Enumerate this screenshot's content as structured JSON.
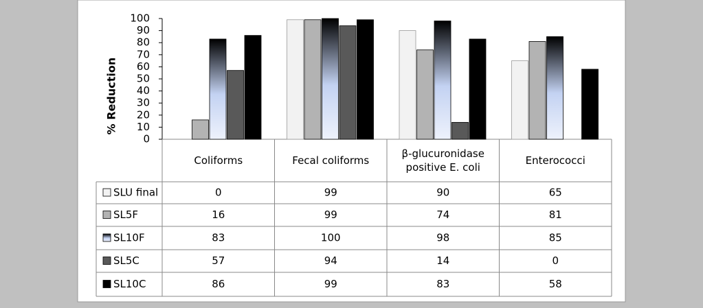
{
  "chart_data": {
    "type": "bar",
    "y_label": "% Reduction",
    "categories": [
      "Coliforms",
      "Fecal coliforms",
      "β-glucuronidase positive E. coli",
      "Enterococci"
    ],
    "ylim": [
      0,
      100
    ],
    "yticks": [
      0,
      10,
      20,
      30,
      40,
      50,
      60,
      70,
      80,
      90,
      100
    ],
    "series": [
      {
        "name": "SLU final",
        "color": "#f2f2f2",
        "values": [
          0,
          99,
          90,
          65
        ]
      },
      {
        "name": "SL5F",
        "color": "#b3b3b3",
        "values": [
          16,
          99,
          74,
          81
        ]
      },
      {
        "name": "SL10F",
        "color": "#c3d2f2",
        "values": [
          83,
          100,
          98,
          85
        ]
      },
      {
        "name": "SL5C",
        "color": "#595959",
        "values": [
          57,
          94,
          14,
          0
        ]
      },
      {
        "name": "SL10C",
        "color": "#000000",
        "values": [
          86,
          99,
          83,
          58
        ]
      }
    ]
  }
}
